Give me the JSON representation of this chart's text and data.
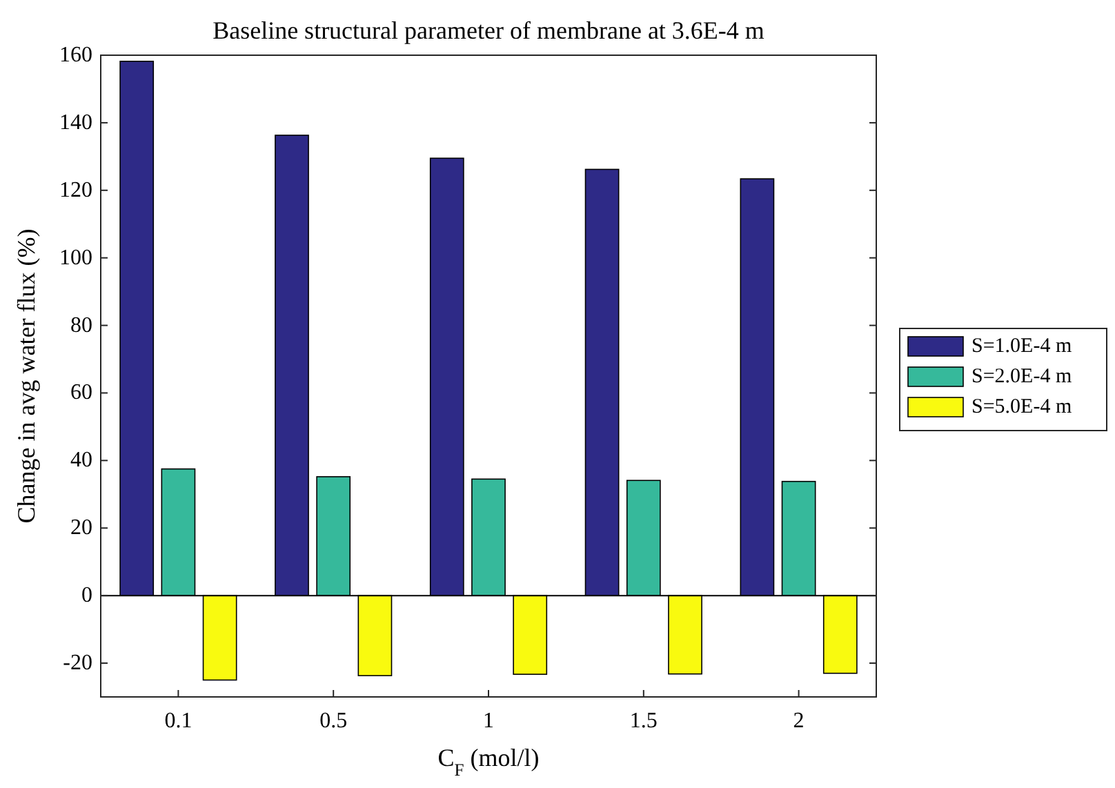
{
  "chart_data": {
    "type": "bar",
    "title": "Baseline structural parameter of membrane at 3.6E-4 m",
    "xlabel": "C$_{F}$ (mol/l)",
    "ylabel": "Change in avg water flux (%)",
    "categories": [
      "0.1",
      "0.5",
      "1",
      "1.5",
      "2"
    ],
    "series": [
      {
        "name": "S=1.0E-4 m",
        "color": "#2e2a87",
        "values": [
          158.2,
          136.3,
          129.5,
          126.2,
          123.4
        ]
      },
      {
        "name": "S=2.0E-4 m",
        "color": "#36b99b",
        "values": [
          37.5,
          35.2,
          34.5,
          34.1,
          33.8
        ]
      },
      {
        "name": "S=5.0E-4 m",
        "color": "#f9fa0f",
        "values": [
          -25,
          -23.7,
          -23.3,
          -23.2,
          -23
        ]
      }
    ],
    "ylim": [
      -30,
      160
    ],
    "yticks": [
      -20,
      0,
      20,
      40,
      60,
      80,
      100,
      120,
      140,
      160
    ],
    "legend": "right"
  }
}
